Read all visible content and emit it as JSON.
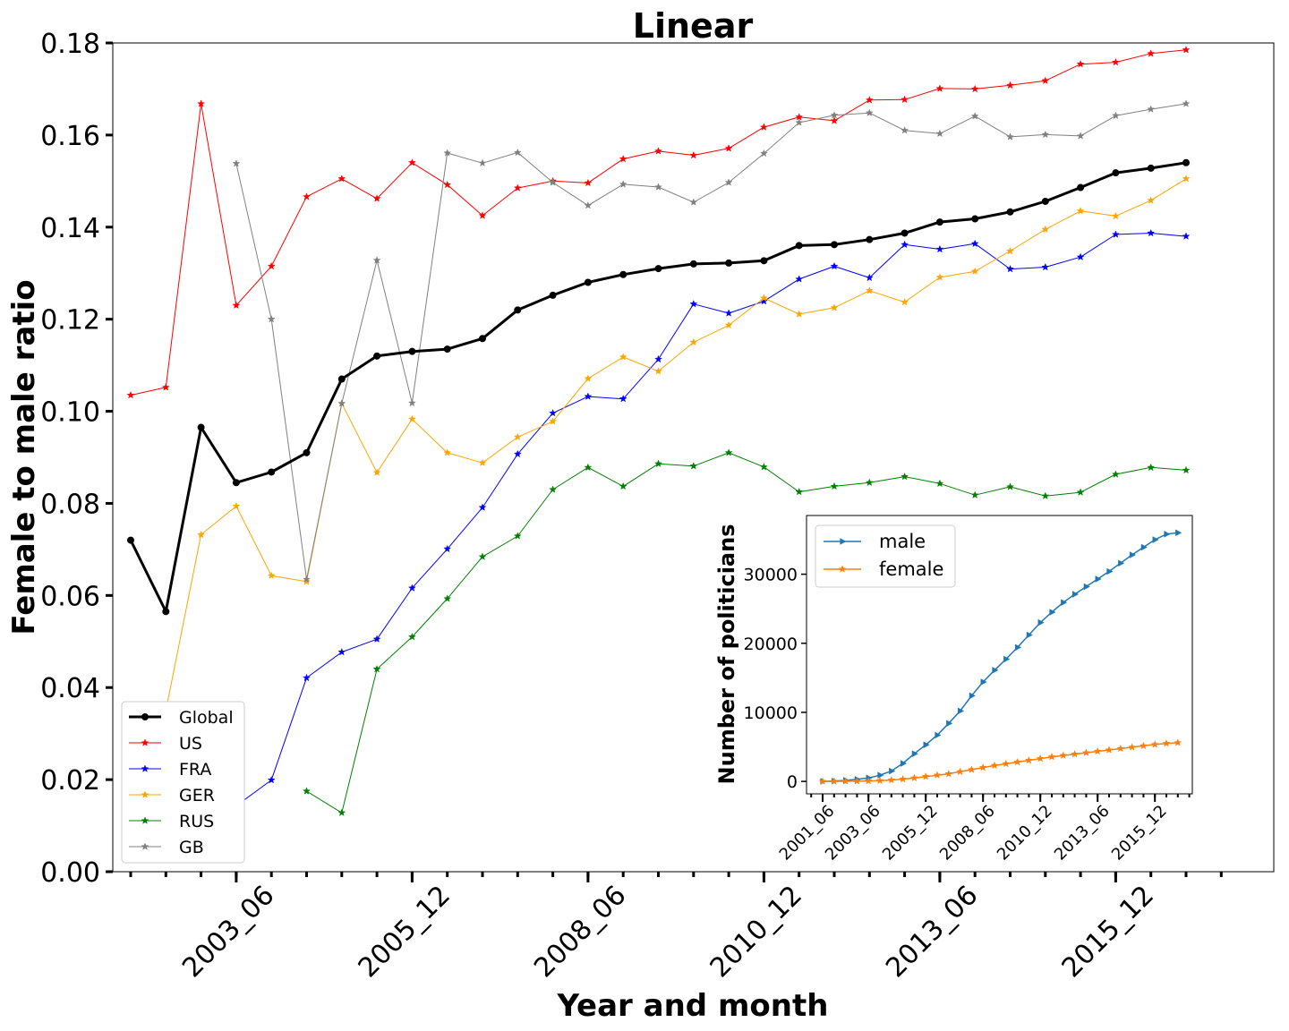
{
  "chart_data": [
    {
      "type": "line",
      "title": "Linear",
      "xlabel": "Year and month",
      "ylabel": "Female to male ratio",
      "ylim": [
        0,
        0.18
      ],
      "y_ticks": [
        "0.00",
        "0.02",
        "0.04",
        "0.06",
        "0.08",
        "0.10",
        "0.12",
        "0.14",
        "0.16",
        "0.18"
      ],
      "x_tick_labels": [
        "2003_06",
        "2005_12",
        "2008_06",
        "2010_12",
        "2013_06",
        "2015_12"
      ],
      "x": [
        "2001_12",
        "2002_06",
        "2002_12",
        "2003_06",
        "2003_12",
        "2004_06",
        "2004_12",
        "2005_06",
        "2005_12",
        "2006_06",
        "2006_12",
        "2007_06",
        "2007_12",
        "2008_06",
        "2008_12",
        "2009_06",
        "2009_12",
        "2010_06",
        "2010_12",
        "2011_06",
        "2011_12",
        "2012_06",
        "2012_12",
        "2013_06",
        "2013_12",
        "2014_06",
        "2014_12",
        "2015_06",
        "2015_12",
        "2016_06",
        "2016_12"
      ],
      "legend_position": "lower left",
      "series": [
        {
          "name": "Global",
          "color": "#000000",
          "marker": "circle",
          "values": [
            0.072,
            0.0565,
            0.0965,
            0.0845,
            0.0868,
            0.091,
            0.107,
            0.112,
            0.113,
            0.1135,
            0.1158,
            0.122,
            0.1252,
            0.128,
            0.1297,
            0.131,
            0.132,
            0.1322,
            0.1327,
            0.136,
            0.1362,
            0.1373,
            0.1387,
            0.1411,
            0.1418,
            0.1433,
            0.1456,
            0.1486,
            0.1518,
            0.1528,
            0.154
          ]
        },
        {
          "name": "US",
          "color": "#ff0000",
          "marker": "star",
          "values": [
            0.1035,
            0.1052,
            0.1668,
            0.123,
            0.1315,
            0.1466,
            0.1505,
            0.1462,
            0.154,
            0.1492,
            0.1425,
            0.1485,
            0.15,
            0.1496,
            0.1548,
            0.1565,
            0.1556,
            0.1571,
            0.1617,
            0.1639,
            0.1631,
            0.1676,
            0.1677,
            0.1701,
            0.17,
            0.1708,
            0.1718,
            0.1754,
            0.1758,
            0.1777,
            0.1785
          ]
        },
        {
          "name": "FRA",
          "color": "#0000ff",
          "marker": "star",
          "values": [
            null,
            null,
            null,
            0.0143,
            0.0199,
            0.0421,
            0.0477,
            0.0505,
            0.0616,
            0.0701,
            0.0791,
            0.0907,
            0.0996,
            0.1032,
            0.1027,
            0.1113,
            0.1233,
            0.1213,
            0.1239,
            0.1287,
            0.1315,
            0.129,
            0.1362,
            0.1352,
            0.1364,
            0.1309,
            0.1313,
            0.1335,
            0.1384,
            0.1387,
            0.138
          ]
        },
        {
          "name": "GER",
          "color": "#ffa500",
          "marker": "star",
          "values": [
            null,
            0.035,
            0.0732,
            0.0794,
            0.0643,
            0.063,
            0.1017,
            0.0867,
            0.0983,
            0.091,
            0.0888,
            0.0944,
            0.0978,
            0.1071,
            0.1118,
            0.1087,
            0.115,
            0.1187,
            0.1246,
            0.1211,
            0.1225,
            0.1262,
            0.1237,
            0.1291,
            0.1304,
            0.1348,
            0.1395,
            0.1435,
            0.1424,
            0.1458,
            0.1505
          ]
        },
        {
          "name": "RUS",
          "color": "#008000",
          "marker": "star",
          "values": [
            null,
            null,
            null,
            null,
            null,
            0.0175,
            0.0128,
            0.044,
            0.051,
            0.0593,
            0.0684,
            0.0729,
            0.083,
            0.0878,
            0.0837,
            0.0886,
            0.0881,
            0.091,
            0.0879,
            0.0825,
            0.0837,
            0.0845,
            0.0858,
            0.0843,
            0.0818,
            0.0836,
            0.0816,
            0.0824,
            0.0863,
            0.0878,
            0.0872
          ]
        },
        {
          "name": "GB",
          "color": "#808080",
          "marker": "star",
          "values": [
            null,
            null,
            null,
            0.1538,
            0.12,
            0.0635,
            0.1017,
            0.1328,
            0.1018,
            0.1561,
            0.1539,
            0.1562,
            0.1497,
            0.1447,
            0.1493,
            0.1487,
            0.1454,
            0.1497,
            0.156,
            0.1627,
            0.1643,
            0.1648,
            0.161,
            0.1603,
            0.1641,
            0.1596,
            0.1601,
            0.1598,
            0.1642,
            0.1656,
            0.1668
          ]
        }
      ]
    },
    {
      "type": "line",
      "title": "",
      "xlabel": "",
      "ylabel": "Number of politicians",
      "ylim": [
        -1800,
        38500
      ],
      "y_ticks": [
        "0",
        "10000",
        "20000",
        "30000"
      ],
      "x_tick_labels": [
        "2001_06",
        "2003_06",
        "2005_12",
        "2008_06",
        "2010_12",
        "2013_06",
        "2015_12"
      ],
      "x": [
        "2001_06",
        "2001_12",
        "2002_06",
        "2002_12",
        "2003_06",
        "2003_12",
        "2004_06",
        "2004_12",
        "2005_06",
        "2005_12",
        "2006_06",
        "2006_12",
        "2007_06",
        "2007_12",
        "2008_06",
        "2008_12",
        "2009_06",
        "2009_12",
        "2010_06",
        "2010_12",
        "2011_06",
        "2011_12",
        "2012_06",
        "2012_12",
        "2013_06",
        "2013_12",
        "2014_06",
        "2014_12",
        "2015_06",
        "2015_12",
        "2016_06",
        "2016_12"
      ],
      "legend_position": "upper left",
      "series": [
        {
          "name": "male",
          "color": "#1f77b4",
          "marker": "triangle-right",
          "values": [
            0,
            50,
            150,
            300,
            500,
            900,
            1500,
            2600,
            4000,
            5300,
            6700,
            8400,
            10200,
            12400,
            14400,
            16100,
            17700,
            19400,
            21200,
            23000,
            24500,
            25900,
            27100,
            28200,
            29300,
            30400,
            31600,
            32800,
            33900,
            35000,
            35800,
            36000
          ]
        },
        {
          "name": "female",
          "color": "#ff7f0e",
          "marker": "star",
          "values": [
            0,
            5,
            15,
            30,
            60,
            110,
            200,
            320,
            500,
            700,
            900,
            1100,
            1400,
            1700,
            2000,
            2300,
            2550,
            2800,
            3050,
            3300,
            3550,
            3750,
            3950,
            4150,
            4350,
            4550,
            4750,
            4950,
            5150,
            5350,
            5500,
            5600
          ]
        }
      ]
    }
  ]
}
